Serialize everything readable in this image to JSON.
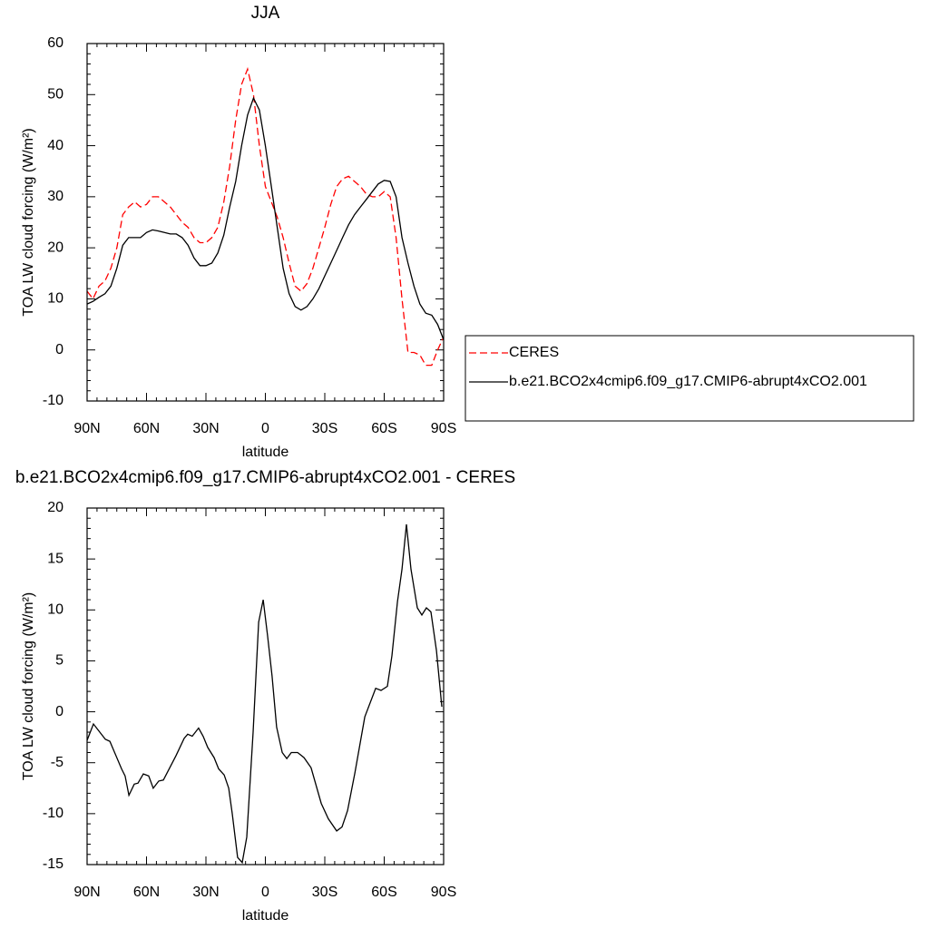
{
  "chart_data": [
    {
      "type": "line",
      "title": "JJA",
      "xlabel": "latitude",
      "ylabel": "TOA LW cloud forcing (W/m²)",
      "x": [
        90,
        87,
        84,
        81,
        78,
        75,
        72,
        69,
        66,
        63,
        60,
        57,
        54,
        51,
        48,
        45,
        42,
        39,
        36,
        33,
        30,
        27,
        24,
        21,
        18,
        15,
        12,
        9,
        6,
        3,
        0,
        -3,
        -6,
        -9,
        -12,
        -15,
        -18,
        -21,
        -24,
        -27,
        -30,
        -33,
        -36,
        -39,
        -42,
        -45,
        -48,
        -51,
        -54,
        -57,
        -60,
        -63,
        -66,
        -69,
        -72,
        -75,
        -78,
        -81,
        -84,
        -87,
        -90
      ],
      "series": [
        {
          "name": "CERES",
          "color": "#ff0000",
          "line_style": "dashed",
          "values": [
            11.5,
            10,
            12.5,
            13.5,
            16,
            20,
            26.5,
            28,
            29,
            28,
            28.5,
            30,
            30,
            29,
            28,
            26.5,
            25,
            24,
            22,
            21,
            21,
            22,
            24,
            29,
            36,
            45,
            52,
            55,
            50,
            40,
            32,
            29,
            26,
            22,
            17,
            12.5,
            11.5,
            13,
            16,
            20,
            24,
            28.5,
            32,
            33.5,
            34,
            33,
            32,
            30.5,
            30,
            30,
            31,
            30,
            22,
            10,
            -0.5,
            -0.5,
            -1,
            -3,
            -3,
            0,
            2.5
          ]
        },
        {
          "name": "b.e21.BCO2x4cmip6.f09_g17.CMIP6-abrupt4xCO2.001",
          "color": "#000000",
          "line_style": "solid",
          "values": [
            9,
            9.5,
            10.3,
            11,
            12.5,
            16,
            20.5,
            22,
            22,
            22,
            23,
            23.5,
            23.3,
            23,
            22.7,
            22.7,
            22,
            20.5,
            18,
            16.5,
            16.5,
            17,
            19,
            22.5,
            28,
            33,
            40,
            46,
            49.3,
            47,
            40,
            32,
            24,
            16,
            11,
            8.5,
            7.8,
            8.5,
            10,
            12,
            14.5,
            17,
            19.5,
            22,
            24.5,
            26.5,
            28,
            29.5,
            31,
            32.5,
            33.2,
            33,
            30,
            22,
            17,
            12.5,
            9,
            7.2,
            6.8,
            5,
            2
          ]
        }
      ],
      "xlim": [
        90,
        -90
      ],
      "xticks": [
        {
          "value": 90,
          "label": "90N"
        },
        {
          "value": 60,
          "label": "60N"
        },
        {
          "value": 30,
          "label": "30N"
        },
        0,
        {
          "value": -30,
          "label": "30S"
        },
        {
          "value": -60,
          "label": "60S"
        },
        {
          "value": -90,
          "label": "90S"
        }
      ],
      "ylim": [
        -10,
        60
      ],
      "yticks": [
        -10,
        0,
        10,
        20,
        30,
        40,
        50,
        60
      ],
      "legend": "outside-right"
    },
    {
      "type": "line",
      "title": "b.e21.BCO2x4cmip6.f09_g17.CMIP6-abrupt4xCO2.001 - CERES",
      "xlabel": "latitude",
      "ylabel": "TOA LW cloud forcing (W/m²)",
      "x": [
        90,
        86.8,
        80.8,
        78.5,
        72.6,
        70.8,
        68.9,
        66.2,
        64.3,
        61.6,
        58.9,
        56.6,
        53.8,
        51.5,
        45.1,
        41,
        39.2,
        36.9,
        33.7,
        31.4,
        29.1,
        25.9,
        23.6,
        20.8,
        18.5,
        16.7,
        14,
        11.7,
        9.4,
        6.2,
        3.4,
        1.1,
        -1.1,
        -3.4,
        -5.7,
        -8.5,
        -10.8,
        -13.1,
        -16.3,
        -19.5,
        -23.1,
        -28.2,
        -31.8,
        -36,
        -38.7,
        -41.5,
        -45.2,
        -50.2,
        -55.7,
        -58.4,
        -61.6,
        -63.9,
        -66.7,
        -69,
        -71.2,
        -73.5,
        -76.7,
        -79,
        -81.3,
        -83.6,
        -86.4,
        -89.1
      ],
      "series": [
        {
          "color": "#000000",
          "line_style": "solid",
          "values": [
            -2.8,
            -1.2,
            -2.7,
            -2.9,
            -5.6,
            -6.3,
            -8.2,
            -7.1,
            -7,
            -6.1,
            -6.3,
            -7.5,
            -6.8,
            -6.7,
            -4.3,
            -2.6,
            -2.2,
            -2.4,
            -1.6,
            -2.4,
            -3.5,
            -4.5,
            -5.6,
            -6.2,
            -7.5,
            -10,
            -14.3,
            -14.8,
            -12.3,
            -2,
            8.8,
            11,
            7.5,
            3.5,
            -1.5,
            -4,
            -4.6,
            -4,
            -4,
            -4.5,
            -5.5,
            -9,
            -10.5,
            -11.7,
            -11.3,
            -9.7,
            -6,
            -0.5,
            2.3,
            2.1,
            2.5,
            5.5,
            10.8,
            14,
            18.4,
            14,
            10.2,
            9.5,
            10.2,
            9.8,
            6,
            0.5
          ]
        }
      ],
      "xlim": [
        90,
        -90
      ],
      "xticks": [
        {
          "value": 90,
          "label": "90N"
        },
        {
          "value": 60,
          "label": "60N"
        },
        {
          "value": 30,
          "label": "30N"
        },
        0,
        {
          "value": -30,
          "label": "30S"
        },
        {
          "value": -60,
          "label": "60S"
        },
        {
          "value": -90,
          "label": "90S"
        }
      ],
      "ylim": [
        -15,
        20
      ],
      "yticks": [
        -15,
        -10,
        -5,
        0,
        5,
        10,
        15,
        20
      ]
    }
  ]
}
